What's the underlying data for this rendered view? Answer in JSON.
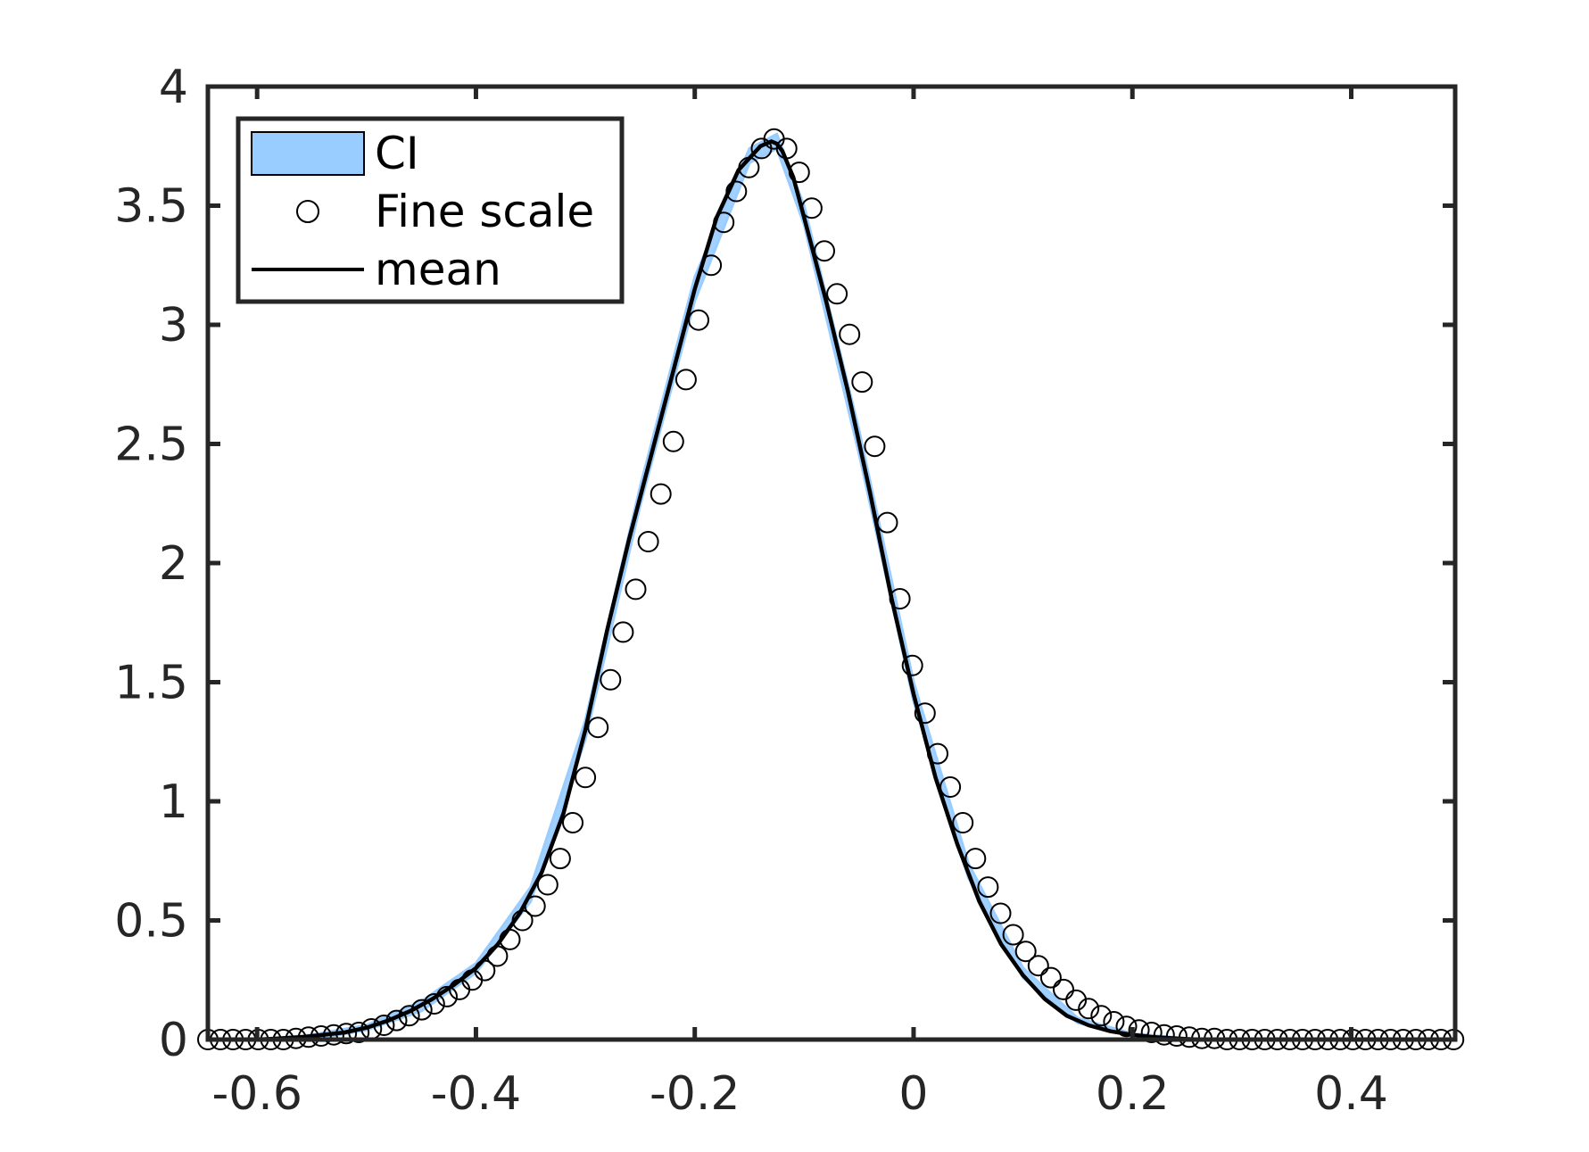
{
  "chart_data": {
    "type": "line",
    "title": "",
    "xlabel": "",
    "ylabel": "",
    "xlim": [
      -0.645,
      0.495
    ],
    "ylim": [
      0,
      4
    ],
    "x_ticks": [
      -0.6,
      -0.4,
      -0.2,
      0,
      0.2,
      0.4
    ],
    "x_tick_labels": [
      "-0.6",
      "-0.4",
      "-0.2",
      "0",
      "0.2",
      "0.4"
    ],
    "y_ticks": [
      0,
      0.5,
      1,
      1.5,
      2,
      2.5,
      3,
      3.5,
      4
    ],
    "y_tick_labels": [
      "0",
      "0.5",
      "1",
      "1.5",
      "2",
      "2.5",
      "3",
      "3.5",
      "4"
    ],
    "grid": false,
    "legend": {
      "position": "top-left",
      "entries": [
        {
          "label": "CI",
          "kind": "patch",
          "color": "#99ccff"
        },
        {
          "label": "Fine scale",
          "kind": "marker",
          "color": "#000000"
        },
        {
          "label": "mean",
          "kind": "line",
          "color": "#000000"
        }
      ]
    },
    "series": [
      {
        "name": "mean",
        "kind": "line",
        "color": "#000000",
        "x": [
          -0.645,
          -0.62,
          -0.6,
          -0.58,
          -0.56,
          -0.54,
          -0.52,
          -0.5,
          -0.48,
          -0.46,
          -0.44,
          -0.42,
          -0.4,
          -0.38,
          -0.36,
          -0.34,
          -0.32,
          -0.3,
          -0.28,
          -0.26,
          -0.24,
          -0.22,
          -0.2,
          -0.18,
          -0.16,
          -0.14,
          -0.13,
          -0.125,
          -0.12,
          -0.11,
          -0.1,
          -0.08,
          -0.06,
          -0.04,
          -0.02,
          0,
          0.02,
          0.04,
          0.06,
          0.08,
          0.1,
          0.12,
          0.14,
          0.16,
          0.18,
          0.2,
          0.22,
          0.24,
          0.26,
          0.28,
          0.3,
          0.35,
          0.4,
          0.45,
          0.495
        ],
        "y": [
          0,
          0,
          0,
          0.005,
          0.01,
          0.02,
          0.03,
          0.05,
          0.08,
          0.12,
          0.17,
          0.23,
          0.3,
          0.4,
          0.53,
          0.7,
          0.95,
          1.3,
          1.72,
          2.1,
          2.45,
          2.8,
          3.15,
          3.45,
          3.65,
          3.75,
          3.77,
          3.76,
          3.73,
          3.62,
          3.45,
          3.1,
          2.72,
          2.3,
          1.85,
          1.45,
          1.1,
          0.82,
          0.58,
          0.4,
          0.27,
          0.17,
          0.1,
          0.06,
          0.035,
          0.02,
          0.01,
          0.005,
          0,
          0,
          0,
          0,
          0,
          0,
          0
        ]
      },
      {
        "name": "Fine scale",
        "kind": "scatter",
        "marker": "circle-open",
        "color": "#000000",
        "x": [
          -0.645,
          -0.6335,
          -0.622,
          -0.6105,
          -0.599,
          -0.5875,
          -0.576,
          -0.5645,
          -0.553,
          -0.5415,
          -0.53,
          -0.5185,
          -0.507,
          -0.4955,
          -0.484,
          -0.4725,
          -0.461,
          -0.4495,
          -0.438,
          -0.4265,
          -0.415,
          -0.4035,
          -0.392,
          -0.3805,
          -0.369,
          -0.3575,
          -0.346,
          -0.3345,
          -0.323,
          -0.3115,
          -0.3,
          -0.2885,
          -0.277,
          -0.2655,
          -0.254,
          -0.2425,
          -0.231,
          -0.2195,
          -0.208,
          -0.1965,
          -0.185,
          -0.1735,
          -0.162,
          -0.1505,
          -0.139,
          -0.1275,
          -0.116,
          -0.1045,
          -0.093,
          -0.0815,
          -0.07,
          -0.0585,
          -0.047,
          -0.0355,
          -0.024,
          -0.0125,
          -0.001,
          0.0105,
          0.022,
          0.0335,
          0.045,
          0.0565,
          0.068,
          0.0795,
          0.091,
          0.1025,
          0.114,
          0.1255,
          0.137,
          0.1485,
          0.16,
          0.1715,
          0.183,
          0.1945,
          0.206,
          0.2175,
          0.229,
          0.2405,
          0.252,
          0.2635,
          0.275,
          0.2865,
          0.298,
          0.3095,
          0.321,
          0.3325,
          0.344,
          0.3555,
          0.367,
          0.3785,
          0.39,
          0.4015,
          0.413,
          0.4245,
          0.436,
          0.4475,
          0.459,
          0.4705,
          0.482,
          0.4935
        ],
        "y": [
          0,
          0,
          0,
          0,
          0,
          0,
          0,
          0.005,
          0.01,
          0.015,
          0.02,
          0.025,
          0.03,
          0.045,
          0.06,
          0.08,
          0.1,
          0.125,
          0.15,
          0.18,
          0.21,
          0.25,
          0.29,
          0.35,
          0.42,
          0.5,
          0.56,
          0.65,
          0.76,
          0.91,
          1.1,
          1.31,
          1.51,
          1.71,
          1.89,
          2.09,
          2.29,
          2.51,
          2.77,
          3.02,
          3.25,
          3.43,
          3.56,
          3.66,
          3.74,
          3.78,
          3.74,
          3.64,
          3.49,
          3.31,
          3.13,
          2.96,
          2.76,
          2.49,
          2.17,
          1.85,
          1.57,
          1.37,
          1.2,
          1.06,
          0.91,
          0.76,
          0.64,
          0.53,
          0.44,
          0.37,
          0.31,
          0.26,
          0.21,
          0.165,
          0.13,
          0.1,
          0.075,
          0.055,
          0.04,
          0.03,
          0.02,
          0.015,
          0.01,
          0.005,
          0.005,
          0,
          0,
          0,
          0,
          0,
          0,
          0,
          0,
          0,
          0,
          0,
          0,
          0,
          0,
          0,
          0,
          0,
          0,
          0
        ]
      },
      {
        "name": "CI",
        "kind": "band",
        "color": "#99ccff",
        "x": [
          -0.645,
          -0.6,
          -0.55,
          -0.5,
          -0.45,
          -0.4,
          -0.35,
          -0.3,
          -0.25,
          -0.2,
          -0.15,
          -0.125,
          -0.1,
          -0.05,
          0,
          0.05,
          0.1,
          0.15,
          0.2,
          0.25,
          0.3,
          0.4,
          0.495
        ],
        "lower": [
          0,
          0,
          0,
          0.04,
          0.12,
          0.28,
          0.58,
          1.26,
          2.24,
          3.1,
          3.68,
          3.74,
          3.42,
          2.46,
          1.42,
          0.68,
          0.26,
          0.07,
          0.015,
          0,
          0,
          0,
          0
        ],
        "upper": [
          0,
          0,
          0.02,
          0.06,
          0.16,
          0.32,
          0.64,
          1.34,
          2.32,
          3.2,
          3.74,
          3.8,
          3.5,
          2.56,
          1.5,
          0.74,
          0.3,
          0.09,
          0.025,
          0.005,
          0,
          0,
          0
        ]
      }
    ]
  }
}
